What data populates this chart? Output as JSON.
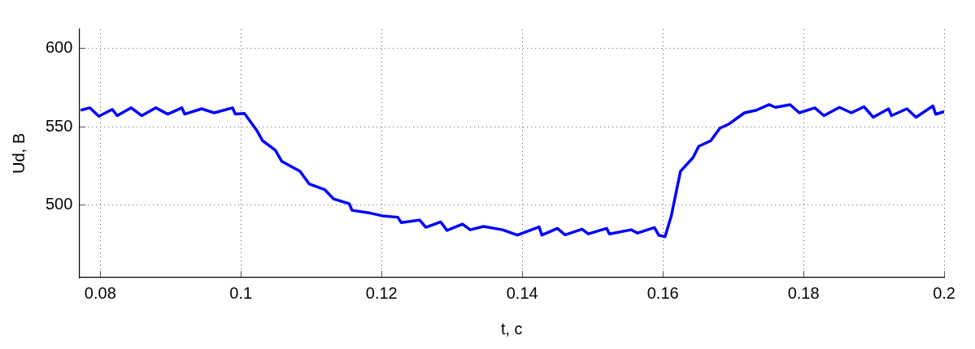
{
  "chart_data": {
    "type": "line",
    "xlabel": "t, c",
    "ylabel": "Ud, B",
    "xlim": [
      0.077,
      0.2
    ],
    "ylim": [
      454,
      612
    ],
    "xticks": [
      0.08,
      0.1,
      0.12,
      0.14,
      0.16,
      0.18,
      0.2
    ],
    "yticks": [
      500,
      550,
      600
    ],
    "grid": true,
    "legend": false,
    "marker": "none",
    "line_style": "solid",
    "series": [
      {
        "color": "#0000ff",
        "x": [
          0.0772,
          0.0785,
          0.0798,
          0.0817,
          0.0824,
          0.0844,
          0.0859,
          0.0879,
          0.0896,
          0.0916,
          0.092,
          0.0944,
          0.0962,
          0.0988,
          0.0992,
          0.1005,
          0.1022,
          0.1031,
          0.1049,
          0.1058,
          0.1084,
          0.1097,
          0.1119,
          0.1132,
          0.1154,
          0.1158,
          0.1184,
          0.1201,
          0.1223,
          0.1228,
          0.1254,
          0.1263,
          0.1284,
          0.1293,
          0.1315,
          0.1326,
          0.1345,
          0.1372,
          0.1393,
          0.1424,
          0.1428,
          0.145,
          0.1461,
          0.1485,
          0.1494,
          0.152,
          0.1524,
          0.1555,
          0.1564,
          0.1588,
          0.1594,
          0.1603,
          0.1612,
          0.1625,
          0.1643,
          0.1651,
          0.1668,
          0.1681,
          0.1694,
          0.1716,
          0.1733,
          0.1751,
          0.176,
          0.1781,
          0.1794,
          0.1816,
          0.1829,
          0.1851,
          0.1868,
          0.1886,
          0.1899,
          0.1921,
          0.1925,
          0.1947,
          0.196,
          0.1984,
          0.1988,
          0.2
        ],
        "values": [
          560.5,
          562,
          556.6,
          561,
          557,
          562,
          557,
          562,
          558,
          562,
          558,
          561.4,
          558.8,
          562,
          558,
          558.4,
          548,
          541,
          535,
          528,
          521.6,
          513.6,
          510,
          504,
          501,
          496.8,
          495,
          493.3,
          492.4,
          489,
          490.6,
          486,
          489.4,
          484,
          488,
          484.4,
          486.5,
          484.4,
          481,
          486.2,
          481,
          485.3,
          481.2,
          484.8,
          481.8,
          485.3,
          481.8,
          484.4,
          482.3,
          485.8,
          481,
          480,
          493.3,
          521.6,
          530.4,
          537.5,
          541,
          549,
          551.7,
          558.8,
          560.5,
          564,
          562.3,
          564,
          558.8,
          562,
          557,
          562.3,
          558.8,
          562.7,
          556,
          561.4,
          557,
          561.4,
          556,
          563.2,
          557.9,
          559.6
        ]
      }
    ]
  }
}
